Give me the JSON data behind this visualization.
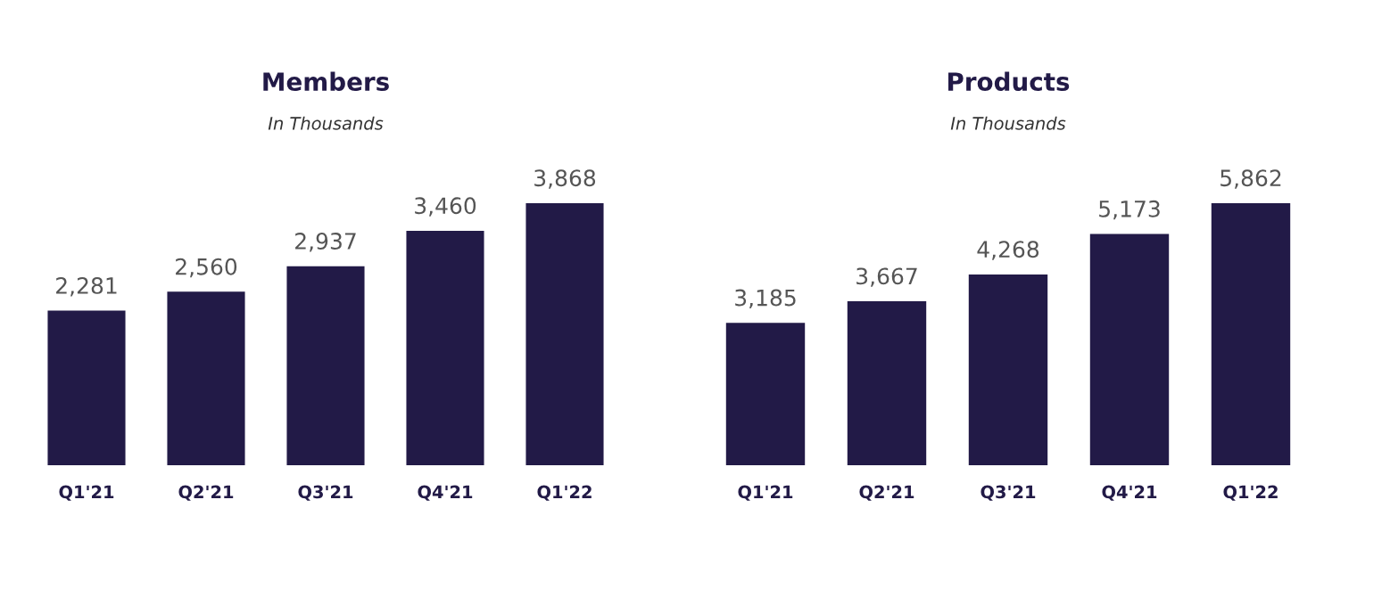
{
  "chart_data": [
    {
      "type": "bar",
      "title": "Members",
      "subtitle": "In Thousands",
      "categories": [
        "Q1'21",
        "Q2'21",
        "Q3'21",
        "Q4'21",
        "Q1'22"
      ],
      "values": [
        2281,
        2560,
        2937,
        3460,
        3868
      ],
      "color": "#221a47",
      "data_labels": true,
      "value_labels": [
        "2,281",
        "2,560",
        "2,937",
        "3,460",
        "3,868"
      ]
    },
    {
      "type": "bar",
      "title": "Products",
      "subtitle": "In Thousands",
      "categories": [
        "Q1'21",
        "Q2'21",
        "Q3'21",
        "Q4'21",
        "Q1'22"
      ],
      "values": [
        3185,
        3667,
        4268,
        5173,
        5862
      ],
      "color": "#221a47",
      "data_labels": true,
      "value_labels": [
        "3,185",
        "3,667",
        "4,268",
        "5,173",
        "5,862"
      ]
    }
  ]
}
